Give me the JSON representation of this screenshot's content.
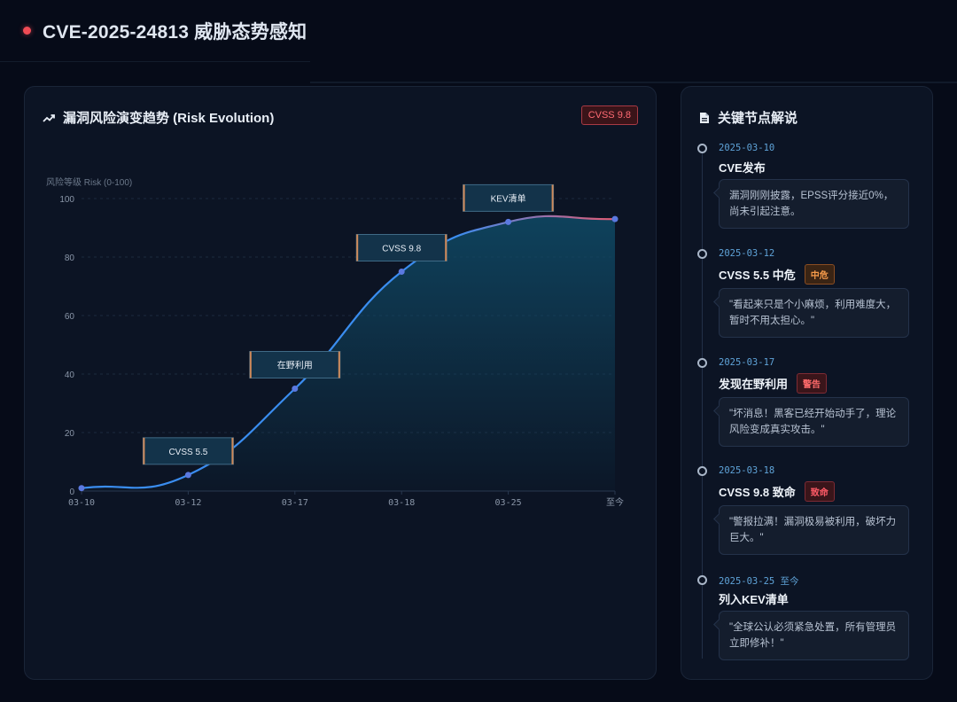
{
  "header": {
    "title": "CVE-2025-24813 威胁态势感知"
  },
  "chart_panel": {
    "title": "漏洞风险演变趋势 (Risk Evolution)",
    "badge": "CVSS 9.8"
  },
  "chart_data": {
    "type": "line",
    "title": "漏洞风险演变趋势 (Risk Evolution)",
    "ylabel": "风险等级 Risk (0-100)",
    "ylim": [
      0,
      100
    ],
    "yticks": [
      0,
      20,
      40,
      60,
      80,
      100
    ],
    "categories": [
      "03-10",
      "03-12",
      "03-17",
      "03-18",
      "03-25",
      "至今"
    ],
    "values": [
      1,
      5.5,
      35,
      75,
      92,
      93
    ],
    "annotations": [
      {
        "label": "CVSS 5.5",
        "category": "03-12"
      },
      {
        "label": "在野利用",
        "category": "03-17"
      },
      {
        "label": "CVSS 9.8",
        "category": "03-18"
      },
      {
        "label": "KEV清单",
        "category": "03-25"
      }
    ],
    "grid": true,
    "colors": {
      "line_start": "#3a8df0",
      "line_end": "#e35b73",
      "point": "#5b79e0",
      "area": "#0f4a66"
    }
  },
  "timeline": {
    "title": "关键节点解说",
    "items": [
      {
        "date": "2025-03-10",
        "title": "CVE发布",
        "tag": "",
        "quote": "漏洞刚刚披露，EPSS评分接近0%，尚未引起注意。"
      },
      {
        "date": "2025-03-12",
        "title": "CVSS 5.5 中危",
        "tag": "中危",
        "quote": "\"看起来只是个小麻烦，利用难度大，暂时不用太担心。\""
      },
      {
        "date": "2025-03-17",
        "title": "发现在野利用",
        "tag": "警告",
        "quote": "\"坏消息！黑客已经开始动手了，理论风险变成真实攻击。\""
      },
      {
        "date": "2025-03-18",
        "title": "CVSS 9.8 致命",
        "tag": "致命",
        "quote": "\"警报拉满！漏洞极易被利用，破坏力巨大。\""
      },
      {
        "date": "2025-03-25 至今",
        "title": "列入KEV清单",
        "tag": "",
        "quote": "\"全球公认必须紧急处置，所有管理员立即修补！\""
      }
    ]
  }
}
